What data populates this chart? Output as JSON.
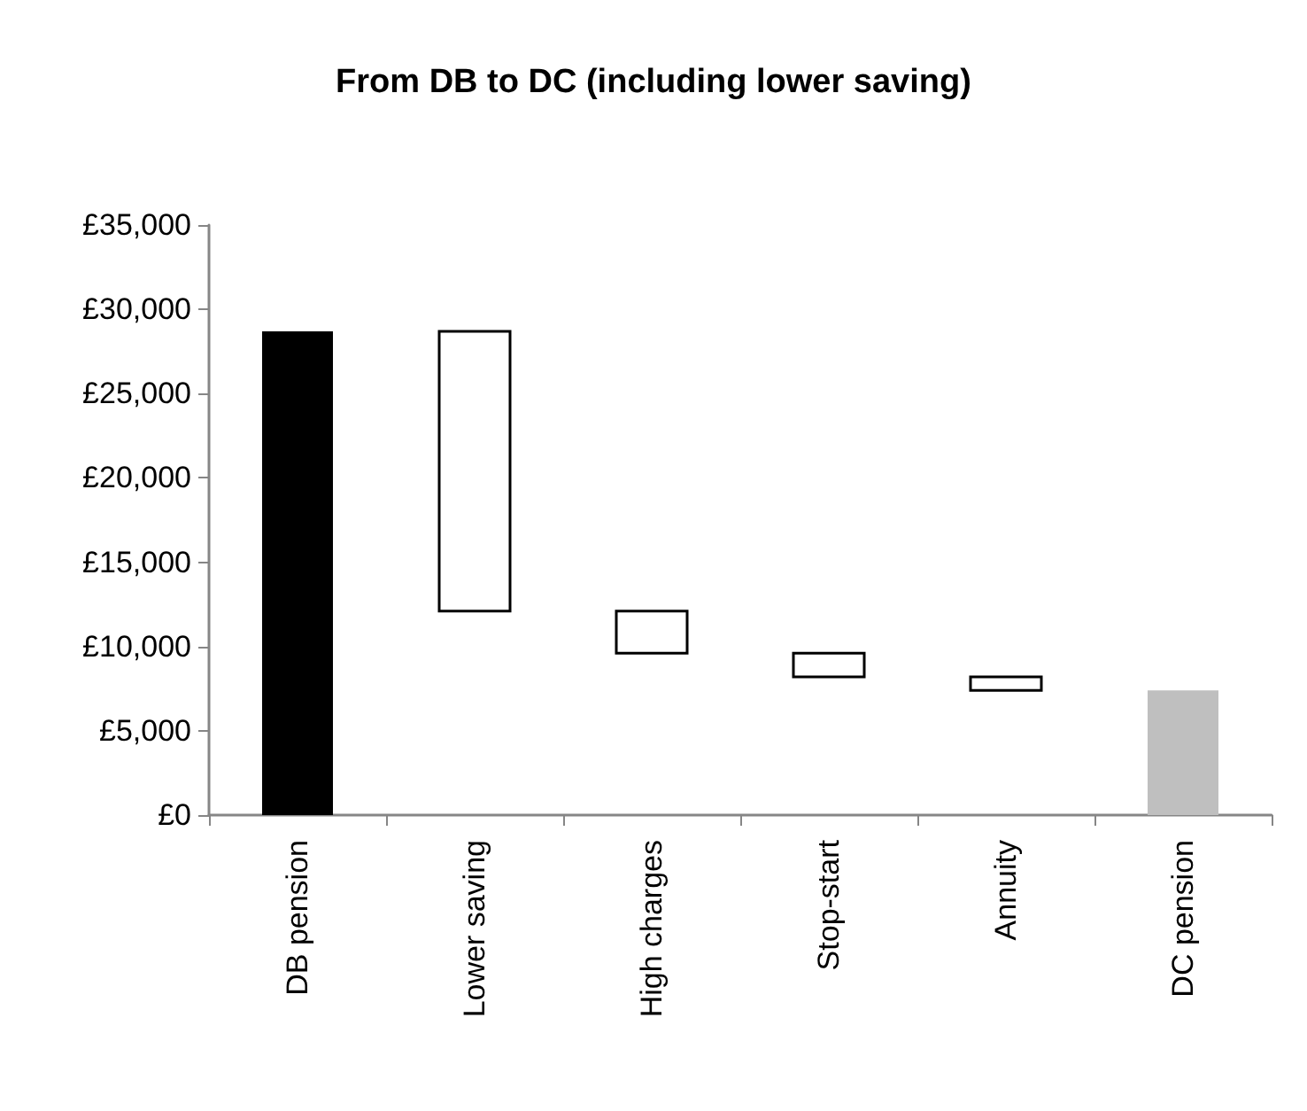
{
  "chart_data": {
    "type": "bar",
    "title": "From DB to DC (including lower saving)",
    "categories": [
      "DB pension",
      "Lower saving",
      "High charges",
      "Stop-start",
      "Annuity",
      "DC pension"
    ],
    "values": [
      28700,
      16600,
      2500,
      1400,
      800,
      7400
    ],
    "base": [
      0,
      12100,
      9600,
      8200,
      7400,
      0
    ],
    "colors": [
      "#000000",
      "#ffffff",
      "#ffffff",
      "#ffffff",
      "#ffffff",
      "#bfbfbf"
    ],
    "ylim": [
      0,
      35000
    ],
    "yticks": [
      {
        "value": 0,
        "label": "£0"
      },
      {
        "value": 5000,
        "label": "£5,000"
      },
      {
        "value": 10000,
        "label": "£10,000"
      },
      {
        "value": 15000,
        "label": "£15,000"
      },
      {
        "value": 20000,
        "label": "£20,000"
      },
      {
        "value": 25000,
        "label": "£25,000"
      },
      {
        "value": 30000,
        "label": "£30,000"
      },
      {
        "value": 35000,
        "label": "£35,000"
      }
    ],
    "grid": false
  }
}
